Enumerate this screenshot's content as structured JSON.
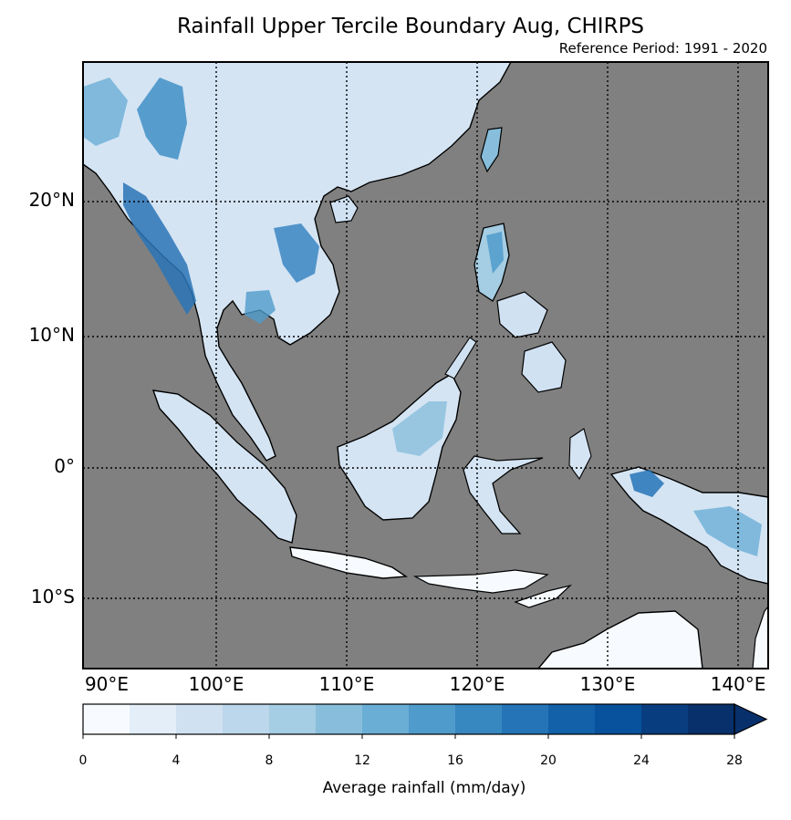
{
  "title": "Rainfall Upper Tercile Boundary Aug, CHIRPS",
  "subtitle": "Reference Period: 1991 - 2020",
  "map": {
    "lon_range": [
      90,
      142
    ],
    "lat_range": [
      -15,
      30
    ],
    "lat_ticks": [
      {
        "value": 20,
        "label": "20°N"
      },
      {
        "value": 10,
        "label": "10°N"
      },
      {
        "value": 0,
        "label": "0°"
      },
      {
        "value": -10,
        "label": "10°S"
      }
    ],
    "lon_ticks": [
      {
        "value": 90,
        "label": "90°E"
      },
      {
        "value": 100,
        "label": "100°E"
      },
      {
        "value": 110,
        "label": "110°E"
      },
      {
        "value": 120,
        "label": "120°E"
      },
      {
        "value": 130,
        "label": "130°E"
      },
      {
        "value": 140,
        "label": "140°E"
      }
    ],
    "ocean_color": "#808080",
    "grid": "dotted"
  },
  "colorbar": {
    "label": "Average rainfall (mm/day)",
    "ticks": [
      "0",
      "4",
      "8",
      "12",
      "16",
      "20",
      "24",
      "28"
    ],
    "levels": [
      0,
      2,
      4,
      6,
      8,
      10,
      12,
      14,
      16,
      18,
      20,
      22,
      24,
      26,
      28
    ],
    "extend": "max",
    "colors": [
      "#f7fbff",
      "#e3eef9",
      "#d0e1f2",
      "#bcd7eb",
      "#a5cde3",
      "#88bedc",
      "#6aaed6",
      "#4f9bcb",
      "#3787c0",
      "#2474b7",
      "#1361a9",
      "#08519c",
      "#083d7f",
      "#08306b"
    ]
  }
}
